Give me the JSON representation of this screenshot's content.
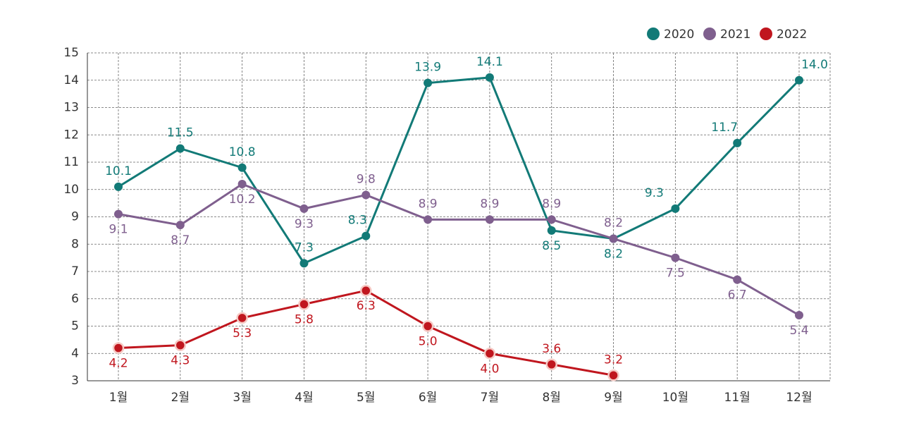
{
  "chart_data": {
    "type": "line",
    "categories": [
      "1월",
      "2월",
      "3월",
      "4월",
      "5월",
      "6월",
      "7월",
      "8월",
      "9월",
      "10월",
      "11월",
      "12월"
    ],
    "series": [
      {
        "name": "2020",
        "color": "#127a77",
        "values": [
          10.1,
          11.5,
          10.8,
          7.3,
          8.3,
          13.9,
          14.1,
          8.5,
          8.2,
          9.3,
          11.7,
          14.0
        ],
        "value_labels": [
          "10.1",
          "11.5",
          "10.8",
          "7.3",
          "8.3",
          "13.9",
          "14.1",
          "8.5",
          "8.2",
          "9.3",
          "11.7",
          "14.0"
        ]
      },
      {
        "name": "2021",
        "color": "#7f5f8e",
        "values": [
          9.1,
          8.7,
          10.2,
          9.3,
          9.8,
          8.9,
          8.9,
          8.9,
          8.2,
          7.5,
          6.7,
          5.4
        ]
      },
      {
        "name": "2022",
        "color": "#c0161e",
        "values": [
          4.2,
          4.3,
          5.3,
          5.8,
          6.3,
          5.0,
          4.0,
          3.6,
          3.2,
          null,
          null,
          null
        ],
        "value_labels": [
          "4.2",
          "4.3",
          "5.3",
          "5.8",
          "6.3",
          "5.0",
          "4.0",
          "3.6",
          "3.2",
          null,
          null,
          null
        ]
      }
    ],
    "ylim": [
      3,
      15
    ],
    "yticks": [
      3,
      4,
      5,
      6,
      7,
      8,
      9,
      10,
      11,
      12,
      13,
      14,
      15
    ],
    "grid": true,
    "legend": "top-right"
  }
}
